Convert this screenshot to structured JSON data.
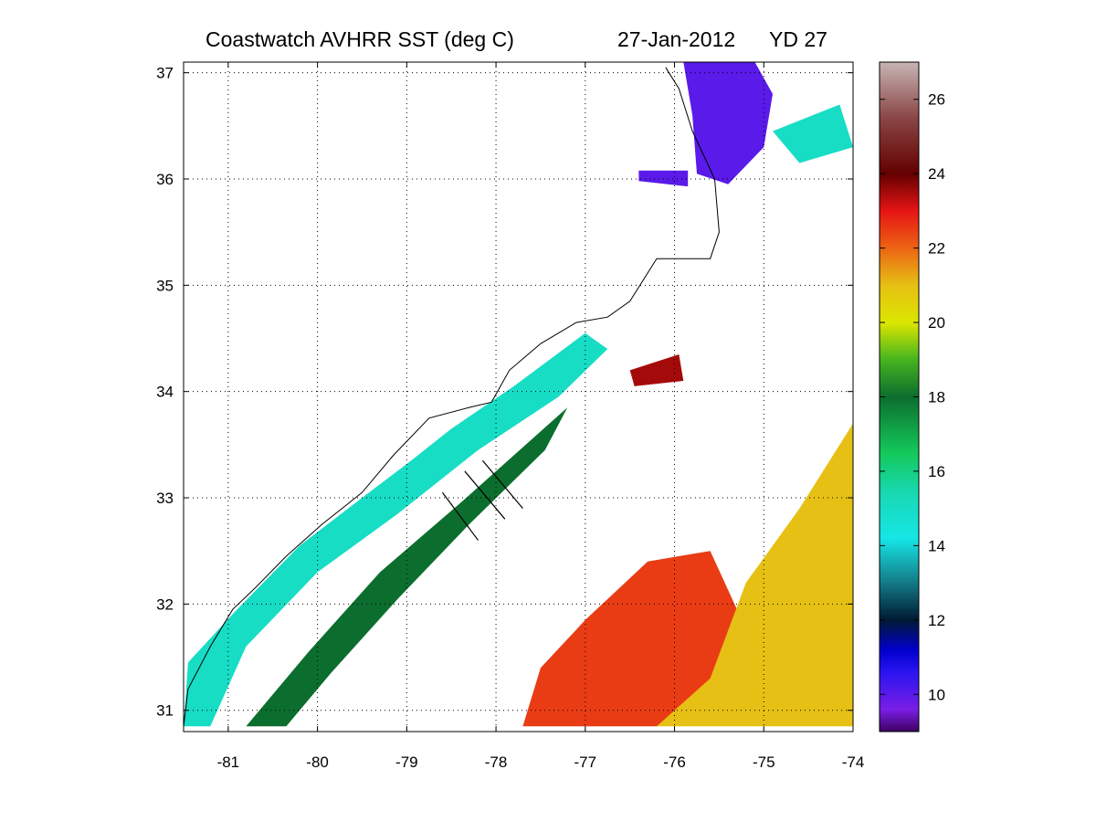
{
  "title": {
    "product": "Coastwatch   AVHRR   SST  (deg C)",
    "date": "27-Jan-2012",
    "yearday": "YD 27"
  },
  "chart_data": {
    "type": "heatmap",
    "xlim": [
      -81.5,
      -74
    ],
    "ylim": [
      30.8,
      37.1
    ],
    "x_ticks": [
      -81,
      -80,
      -79,
      -78,
      -77,
      -76,
      -75,
      -74
    ],
    "y_ticks": [
      31,
      32,
      33,
      34,
      35,
      36,
      37
    ],
    "x_tick_labels": [
      "-81",
      "-80",
      "-79",
      "-78",
      "-77",
      "-76",
      "-75",
      "-74"
    ],
    "y_tick_labels": [
      "31",
      "32",
      "33",
      "34",
      "35",
      "36",
      "37"
    ],
    "grid": true,
    "colorbar": {
      "position": "right",
      "range": [
        9,
        27
      ],
      "ticks": [
        10,
        12,
        14,
        16,
        18,
        20,
        22,
        24,
        26
      ],
      "tick_labels": [
        "10",
        "12",
        "14",
        "16",
        "18",
        "20",
        "22",
        "24",
        "26"
      ],
      "colormap": [
        {
          "v": 9,
          "c": "#3d0062"
        },
        {
          "v": 9.6,
          "c": "#7a1ee6"
        },
        {
          "v": 10.6,
          "c": "#2a14f0"
        },
        {
          "v": 11.2,
          "c": "#0000cc"
        },
        {
          "v": 12,
          "c": "#001a33"
        },
        {
          "v": 13,
          "c": "#137a86"
        },
        {
          "v": 14.2,
          "c": "#16e6e6"
        },
        {
          "v": 15.4,
          "c": "#18d8b4"
        },
        {
          "v": 16.5,
          "c": "#14c85a"
        },
        {
          "v": 18,
          "c": "#0c6e2e"
        },
        {
          "v": 19,
          "c": "#46b41e"
        },
        {
          "v": 20,
          "c": "#dce600"
        },
        {
          "v": 21,
          "c": "#e6c014"
        },
        {
          "v": 22,
          "c": "#ec6414"
        },
        {
          "v": 23,
          "c": "#e61414"
        },
        {
          "v": 24,
          "c": "#640000"
        },
        {
          "v": 25.5,
          "c": "#8a4646"
        },
        {
          "v": 27,
          "c": "#c8b4b4"
        }
      ]
    },
    "sst_regions": [
      {
        "name": "chesapeake-cold",
        "sst": 10,
        "points": [
          [
            -75.9,
            37.1
          ],
          [
            -75.1,
            37.1
          ],
          [
            -74.9,
            36.8
          ],
          [
            -75.0,
            36.3
          ],
          [
            -75.4,
            35.95
          ],
          [
            -75.75,
            36.05
          ],
          [
            -75.8,
            36.6
          ]
        ]
      },
      {
        "name": "albemarle-sound",
        "sst": 10,
        "points": [
          [
            -76.4,
            36.08
          ],
          [
            -75.85,
            36.08
          ],
          [
            -75.85,
            35.93
          ],
          [
            -76.4,
            35.98
          ]
        ]
      },
      {
        "name": "northeast-offshore-patches",
        "sst": 15,
        "points": [
          [
            -74.9,
            36.45
          ],
          [
            -74.15,
            36.7
          ],
          [
            -74.0,
            36.3
          ],
          [
            -74.6,
            36.15
          ]
        ]
      },
      {
        "name": "gulfstream-eddy-red",
        "sst": 23.5,
        "points": [
          [
            -76.5,
            34.2
          ],
          [
            -75.95,
            34.35
          ],
          [
            -75.9,
            34.1
          ],
          [
            -76.45,
            34.05
          ]
        ]
      },
      {
        "name": "shelf-cool-band",
        "sst": 15,
        "points": [
          [
            -81.5,
            30.85
          ],
          [
            -81.45,
            31.45
          ],
          [
            -80.9,
            31.95
          ],
          [
            -80.2,
            32.55
          ],
          [
            -79.5,
            33.0
          ],
          [
            -78.95,
            33.35
          ],
          [
            -78.5,
            33.65
          ],
          [
            -77.8,
            34.05
          ],
          [
            -77.0,
            34.55
          ],
          [
            -76.75,
            34.4
          ],
          [
            -77.3,
            33.95
          ],
          [
            -78.2,
            33.45
          ],
          [
            -79.1,
            32.85
          ],
          [
            -80.0,
            32.3
          ],
          [
            -80.8,
            31.6
          ],
          [
            -81.2,
            30.85
          ]
        ]
      },
      {
        "name": "shelf-warm-edge",
        "sst": 18,
        "points": [
          [
            -80.8,
            30.85
          ],
          [
            -80.1,
            31.55
          ],
          [
            -79.3,
            32.3
          ],
          [
            -78.4,
            32.95
          ],
          [
            -77.6,
            33.55
          ],
          [
            -77.2,
            33.85
          ],
          [
            -77.45,
            33.45
          ],
          [
            -78.3,
            32.75
          ],
          [
            -79.1,
            32.05
          ],
          [
            -79.85,
            31.35
          ],
          [
            -80.35,
            30.85
          ]
        ]
      },
      {
        "name": "southern-warm-red",
        "sst": 22.5,
        "points": [
          [
            -77.7,
            30.85
          ],
          [
            -77.5,
            31.4
          ],
          [
            -77.0,
            31.85
          ],
          [
            -76.3,
            32.4
          ],
          [
            -75.6,
            32.5
          ],
          [
            -75.3,
            31.95
          ],
          [
            -75.6,
            31.2
          ],
          [
            -76.2,
            30.85
          ]
        ]
      },
      {
        "name": "southeast-warm-orange",
        "sst": 21,
        "points": [
          [
            -76.2,
            30.85
          ],
          [
            -75.6,
            31.3
          ],
          [
            -75.2,
            32.2
          ],
          [
            -74.6,
            32.9
          ],
          [
            -74.0,
            33.7
          ],
          [
            -74.0,
            30.85
          ]
        ]
      }
    ],
    "front_markers": [
      {
        "start": [
          -78.35,
          33.25
        ],
        "end": [
          -77.9,
          32.8
        ]
      },
      {
        "start": [
          -78.15,
          33.35
        ],
        "end": [
          -77.7,
          32.9
        ]
      },
      {
        "start": [
          -78.6,
          33.05
        ],
        "end": [
          -78.2,
          32.6
        ]
      }
    ],
    "coastline": [
      [
        -81.5,
        30.85
      ],
      [
        -81.45,
        31.2
      ],
      [
        -81.2,
        31.6
      ],
      [
        -80.95,
        31.95
      ],
      [
        -80.7,
        32.15
      ],
      [
        -80.35,
        32.45
      ],
      [
        -79.95,
        32.75
      ],
      [
        -79.5,
        33.05
      ],
      [
        -79.15,
        33.4
      ],
      [
        -78.75,
        33.75
      ],
      [
        -78.3,
        33.85
      ],
      [
        -78.05,
        33.9
      ],
      [
        -77.85,
        34.2
      ],
      [
        -77.5,
        34.45
      ],
      [
        -77.1,
        34.65
      ],
      [
        -76.75,
        34.7
      ],
      [
        -76.5,
        34.85
      ],
      [
        -76.2,
        35.25
      ],
      [
        -75.6,
        35.25
      ],
      [
        -75.5,
        35.5
      ],
      [
        -75.55,
        36.0
      ],
      [
        -75.8,
        36.45
      ],
      [
        -75.95,
        36.85
      ],
      [
        -76.1,
        37.05
      ]
    ]
  }
}
